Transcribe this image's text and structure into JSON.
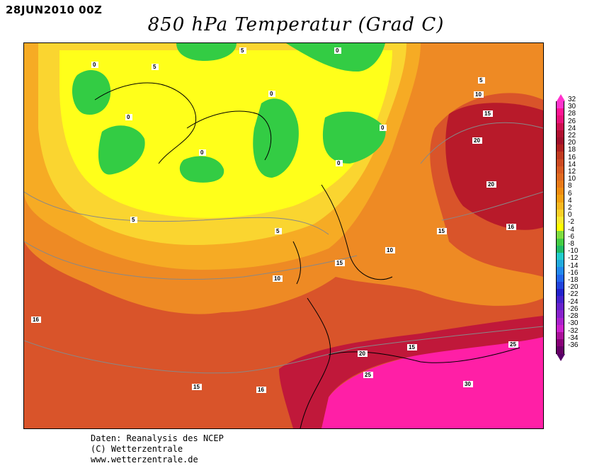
{
  "date_label": "28JUN2010 00Z",
  "title": "850 hPa Temperatur (Grad C)",
  "credits": [
    "Daten: Reanalysis des NCEP",
    "(C) Wetterzentrale",
    "www.wetterzentrale.de"
  ],
  "colorbar": {
    "labels": [
      "32",
      "30",
      "28",
      "26",
      "24",
      "22",
      "20",
      "18",
      "16",
      "14",
      "12",
      "10",
      "8",
      "6",
      "4",
      "2",
      "0",
      "-2",
      "-4",
      "-6",
      "-8",
      "-10",
      "-12",
      "-14",
      "-16",
      "-18",
      "-20",
      "-22",
      "-24",
      "-26",
      "-28",
      "-30",
      "-32",
      "-34",
      "-36"
    ],
    "colors": [
      "#ff33cc",
      "#ff1493",
      "#e8117a",
      "#cc1050",
      "#b01030",
      "#a0102a",
      "#b02020",
      "#c03a20",
      "#cc4a22",
      "#d85a22",
      "#e06a20",
      "#e87a18",
      "#f08c10",
      "#f5a010",
      "#f8b820",
      "#fad028",
      "#fbe830",
      "#ffff00",
      "#7fdd40",
      "#44cc44",
      "#22bb66",
      "#22cccc",
      "#22aadd",
      "#2288ee",
      "#2266ee",
      "#2244dd",
      "#2222cc",
      "#4422cc",
      "#6622cc",
      "#8822cc",
      "#aa22cc",
      "#cc22cc",
      "#aa1199",
      "#880077",
      "#660066"
    ]
  },
  "contour_labels": [
    "0",
    "0",
    "0",
    "0",
    "0",
    "0",
    "0",
    "5",
    "5",
    "5",
    "5",
    "5",
    "10",
    "10",
    "10",
    "15",
    "15",
    "15",
    "15",
    "15",
    "16",
    "16",
    "16",
    "20",
    "20",
    "20",
    "25",
    "25",
    "30"
  ]
}
